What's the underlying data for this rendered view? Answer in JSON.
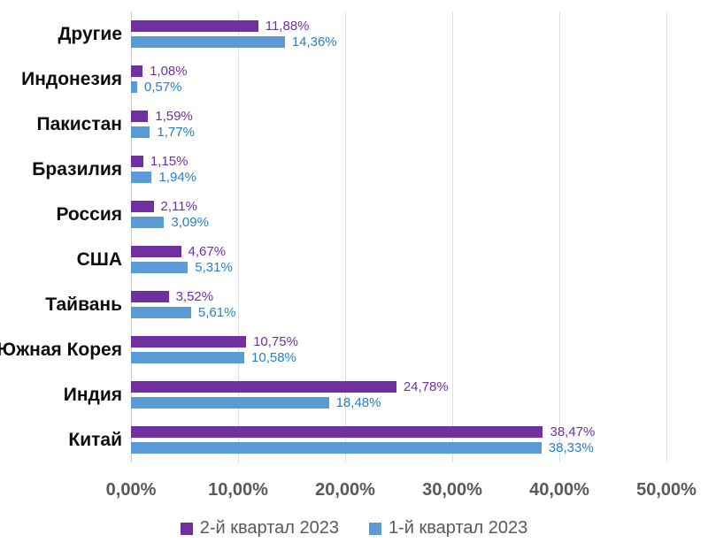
{
  "chart_data": {
    "type": "bar",
    "orientation": "horizontal",
    "title": "",
    "xlabel": "",
    "ylabel": "",
    "grid": "vertical",
    "legend_position": "bottom",
    "categories": [
      "Другие",
      "Индонезия",
      "Пакистан",
      "Бразилия",
      "Россия",
      "США",
      "Тайвань",
      "Южная Корея",
      "Индия",
      "Китай"
    ],
    "series": [
      {
        "name": "2-й квартал 2023",
        "color": "#7030A0",
        "label_color": "#7030A0",
        "values": [
          11.88,
          1.08,
          1.59,
          1.15,
          2.11,
          4.67,
          3.52,
          10.75,
          24.78,
          38.47
        ],
        "labels": [
          "11,88%",
          "1,08%",
          "1,59%",
          "1,15%",
          "2,11%",
          "4,67%",
          "3,52%",
          "10,75%",
          "24,78%",
          "38,47%"
        ]
      },
      {
        "name": "1-й квартал 2023",
        "color": "#5B9BD5",
        "label_color": "#2780C4",
        "values": [
          14.36,
          0.57,
          1.77,
          1.94,
          3.09,
          5.31,
          5.61,
          10.58,
          18.48,
          38.33
        ],
        "labels": [
          "14,36%",
          "0,57%",
          "1,77%",
          "1,94%",
          "3,09%",
          "5,31%",
          "5,61%",
          "10,58%",
          "18,48%",
          "38,33%"
        ]
      }
    ],
    "x_axis": {
      "min": 0,
      "max": 50,
      "tick_labels": [
        "0,00%",
        "10,00%",
        "20,00%",
        "30,00%",
        "40,00%",
        "50,00%"
      ]
    },
    "colors": {
      "background": "#FFFFFF",
      "gridline": "#DEDEDE",
      "axis_line": "#C9C9C9",
      "tick_label": "#595959",
      "category_label": "#0D0D0D",
      "legend_label": "#595959"
    }
  }
}
